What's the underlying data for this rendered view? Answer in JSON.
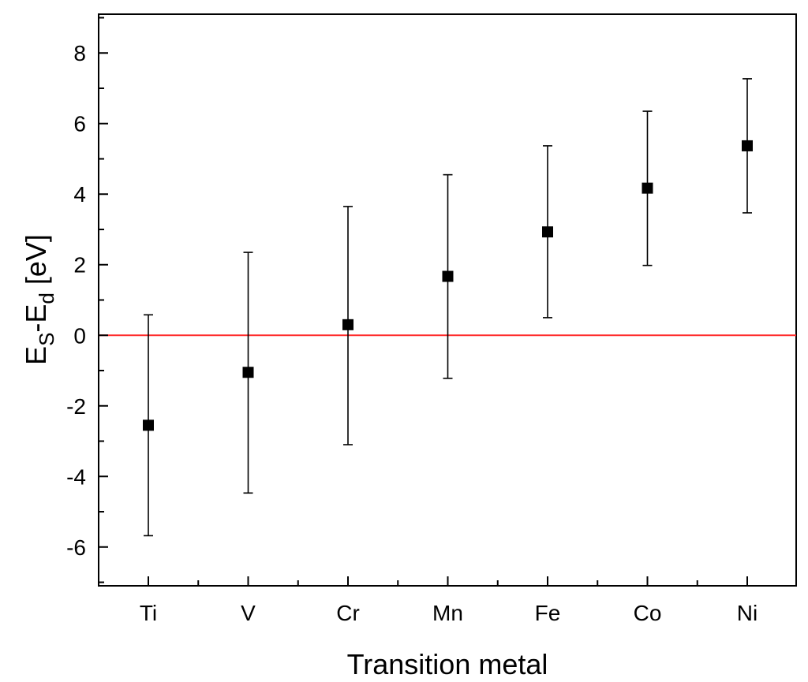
{
  "chart_data": {
    "type": "scatter",
    "title": "",
    "xlabel": "Transition metal",
    "ylabel": {
      "main": "E",
      "sub1": "S",
      "dash": "-E",
      "sub2": "d",
      "unit": " [eV]"
    },
    "categories": [
      "Ti",
      "V",
      "Cr",
      "Mn",
      "Fe",
      "Co",
      "Ni"
    ],
    "series": [
      {
        "values": [
          -2.55,
          -1.05,
          0.3,
          1.67,
          2.93,
          4.17,
          5.37
        ],
        "err_high": [
          0.58,
          2.35,
          3.65,
          4.55,
          5.37,
          6.35,
          7.27
        ],
        "err_low": [
          -5.68,
          -4.47,
          -3.1,
          -1.22,
          0.5,
          1.98,
          3.47
        ],
        "color": "#000000"
      }
    ],
    "reference_line": {
      "y": 0,
      "color": "#ff2a2a"
    },
    "ylim": [
      -7.1,
      9.1
    ],
    "yticks": [
      "-6",
      "-4",
      "-2",
      "0",
      "2",
      "4",
      "6",
      "8"
    ],
    "ytick_values": [
      -6,
      -4,
      -2,
      0,
      2,
      4,
      6,
      8
    ],
    "minor_ytick_step": 1,
    "grid": false,
    "legend": "none"
  }
}
